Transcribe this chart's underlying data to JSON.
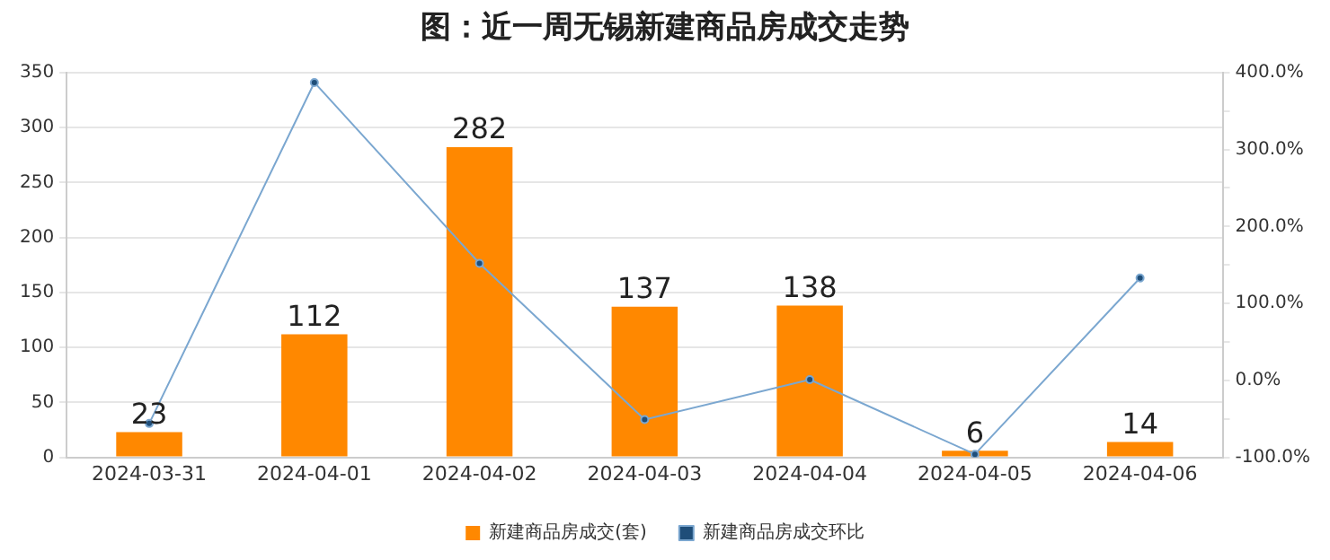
{
  "chart_data": {
    "type": "bar",
    "title": "图：近一周无锡新建商品房成交走势",
    "categories": [
      "2024-03-31",
      "2024-04-01",
      "2024-04-02",
      "2024-04-03",
      "2024-04-04",
      "2024-04-05",
      "2024-04-06"
    ],
    "series": [
      {
        "name": "新建商品房成交(套)",
        "color": "#ff8800",
        "values": [
          23,
          112,
          282,
          137,
          138,
          6,
          14
        ],
        "value_labels": [
          "23",
          "112",
          "282",
          "137",
          "138",
          "6",
          "14"
        ]
      },
      {
        "name": "新建商品房成交环比",
        "type": "line",
        "axis": "y2",
        "color": "#7ba7d0",
        "marker": "circle",
        "values": [
          -56,
          387,
          152,
          -51,
          1,
          -96,
          133
        ]
      }
    ],
    "ylim": [
      0,
      350
    ],
    "yticks": [
      0,
      50,
      100,
      150,
      200,
      250,
      300,
      350
    ],
    "y2lim": [
      -100,
      400
    ],
    "y2ticks": [
      {
        "value": -100,
        "label": "-100.0%"
      },
      {
        "value": -50,
        "label": null
      },
      {
        "value": 0,
        "label": "0.0%"
      },
      {
        "value": 50,
        "label": null
      },
      {
        "value": 100,
        "label": "100.0%"
      },
      {
        "value": 150,
        "label": null
      },
      {
        "value": 200,
        "label": "200.0%"
      },
      {
        "value": 250,
        "label": null
      },
      {
        "value": 300,
        "label": "300.0%"
      },
      {
        "value": 350,
        "label": null
      },
      {
        "value": 400,
        "label": "400.0%"
      }
    ],
    "grid": "y",
    "legend": "bottom"
  }
}
